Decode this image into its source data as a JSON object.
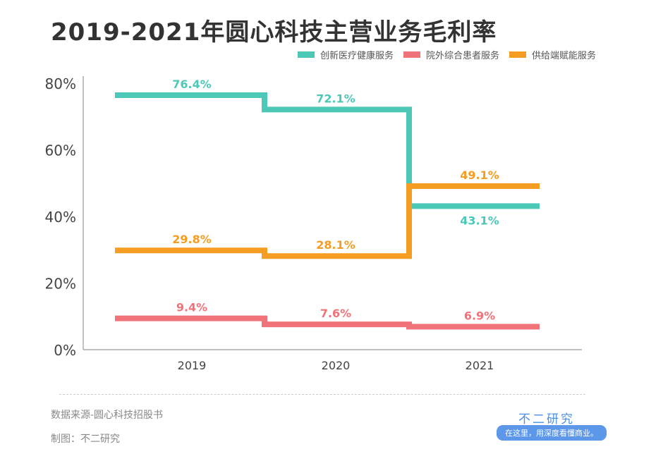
{
  "title": "2019-2021年圆心科技主营业务毛利率",
  "footer": {
    "source": "数据来源-圆心科技招股书",
    "maker": "制图：不二研究"
  },
  "brand": {
    "name": "不二研究",
    "slogan": "在这里，用深度看懂商业。"
  },
  "chart_data": {
    "type": "line",
    "step": true,
    "title": "2019-2021年圆心科技主营业务毛利率",
    "categories": [
      "2019",
      "2020",
      "2021"
    ],
    "ylim": [
      0,
      80
    ],
    "yticks": [
      "0%",
      "20%",
      "40%",
      "60%",
      "80%"
    ],
    "grid": false,
    "legend": "top-right",
    "series": [
      {
        "name": "创新医疗健康服务",
        "color": "#4cc8b6",
        "values": [
          76.4,
          72.1,
          43.1
        ],
        "labels": [
          "76.4%",
          "72.1%",
          "43.1%"
        ]
      },
      {
        "name": "院外综合患者服务",
        "color": "#f0737a",
        "values": [
          9.4,
          7.6,
          6.9
        ],
        "labels": [
          "9.4%",
          "7.6%",
          "6.9%"
        ]
      },
      {
        "name": "供给端赋能服务",
        "color": "#f59d22",
        "values": [
          29.8,
          28.1,
          49.1
        ],
        "labels": [
          "29.8%",
          "28.1%",
          "49.1%"
        ]
      }
    ]
  }
}
